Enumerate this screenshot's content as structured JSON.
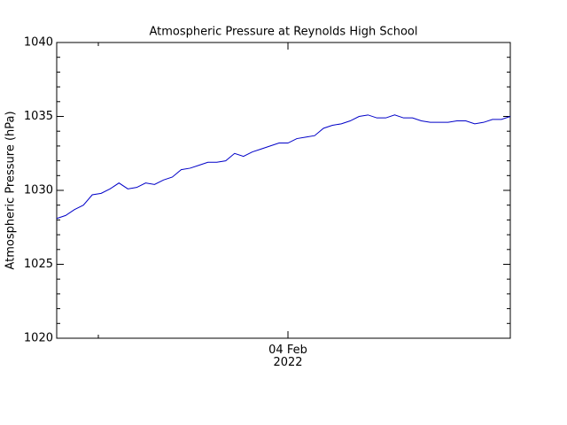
{
  "chart_data": {
    "type": "line",
    "title": "Atmospheric Pressure at Reynolds High School",
    "y_label": "Atmospheric Pressure (hPa)",
    "categories": [
      null,
      null,
      null,
      null,
      null,
      null,
      null,
      null,
      null,
      null,
      null,
      null,
      null,
      null,
      null,
      null,
      null,
      null,
      null,
      null,
      null,
      null,
      null,
      null,
      null,
      null,
      "04 Feb\n2022",
      null,
      null,
      null,
      null,
      null,
      null,
      null,
      null,
      null,
      null,
      null,
      null,
      null,
      null,
      null,
      null,
      null,
      null,
      null,
      null,
      null,
      null,
      null,
      null,
      null
    ],
    "series": [
      {
        "name": "Pressure",
        "color": "#0000c8",
        "values": [
          1028.1,
          1028.3,
          1028.7,
          1029.0,
          1029.7,
          1029.8,
          1030.1,
          1030.5,
          1030.1,
          1030.2,
          1030.5,
          1030.4,
          1030.7,
          1030.9,
          1031.4,
          1031.5,
          1031.7,
          1031.9,
          1031.9,
          1032.0,
          1032.5,
          1032.3,
          1032.6,
          1032.8,
          1033.0,
          1033.2,
          1033.2,
          1033.5,
          1033.6,
          1033.7,
          1034.2,
          1034.4,
          1034.5,
          1034.7,
          1035.0,
          1035.1,
          1034.9,
          1034.9,
          1035.1,
          1034.9,
          1034.9,
          1034.7,
          1034.6,
          1034.6,
          1034.6,
          1034.7,
          1034.7,
          1034.5,
          1034.6,
          1034.8,
          1034.8,
          1035.0
        ]
      }
    ],
    "ylim": [
      1020,
      1040
    ],
    "yticks": [
      1020,
      1025,
      1030,
      1035,
      1040
    ],
    "grid": false
  }
}
